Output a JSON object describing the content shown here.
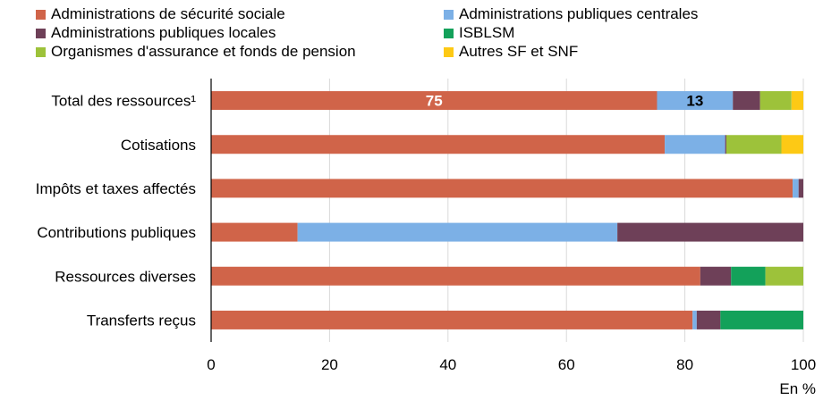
{
  "chart_data": {
    "type": "bar",
    "orientation": "horizontal",
    "stacked": true,
    "categories": [
      "Total des ressources¹",
      "Cotisations",
      "Impôts et taxes affectés",
      "Contributions publiques",
      "Ressources diverses",
      "Transferts reçus"
    ],
    "series": [
      {
        "name": "Administrations de sécurité sociale",
        "color": "#d06449",
        "values": [
          75.3,
          76.6,
          98.2,
          14.6,
          82.6,
          81.3
        ]
      },
      {
        "name": "Administrations publiques centrales",
        "color": "#7cb0e6",
        "values": [
          12.8,
          10.2,
          1.0,
          54.0,
          0.0,
          0.7
        ]
      },
      {
        "name": "Administrations publiques locales",
        "color": "#6e4058",
        "values": [
          4.6,
          0.2,
          0.8,
          31.4,
          5.2,
          4.0
        ]
      },
      {
        "name": "ISBLSM",
        "color": "#13a15a",
        "values": [
          0.0,
          0.0,
          0.0,
          0.0,
          5.8,
          14.0
        ]
      },
      {
        "name": "Organismes d'assurance et fonds de pension",
        "color": "#9dc23a",
        "values": [
          5.3,
          9.3,
          0.0,
          0.0,
          6.4,
          0.0
        ]
      },
      {
        "name": "Autres SF et SNF",
        "color": "#fdc915",
        "values": [
          2.0,
          3.7,
          0.0,
          0.0,
          0.0,
          0.0
        ]
      }
    ],
    "data_labels": [
      {
        "category": 0,
        "series": 0,
        "text": "75",
        "color": "#ffffff"
      },
      {
        "category": 0,
        "series": 1,
        "text": "13",
        "color": "#000000"
      }
    ],
    "xlim": [
      0,
      100
    ],
    "xticks": [
      0,
      20,
      40,
      60,
      80,
      100
    ],
    "xlabel": "En %",
    "grid": true,
    "legend_position": "top"
  }
}
